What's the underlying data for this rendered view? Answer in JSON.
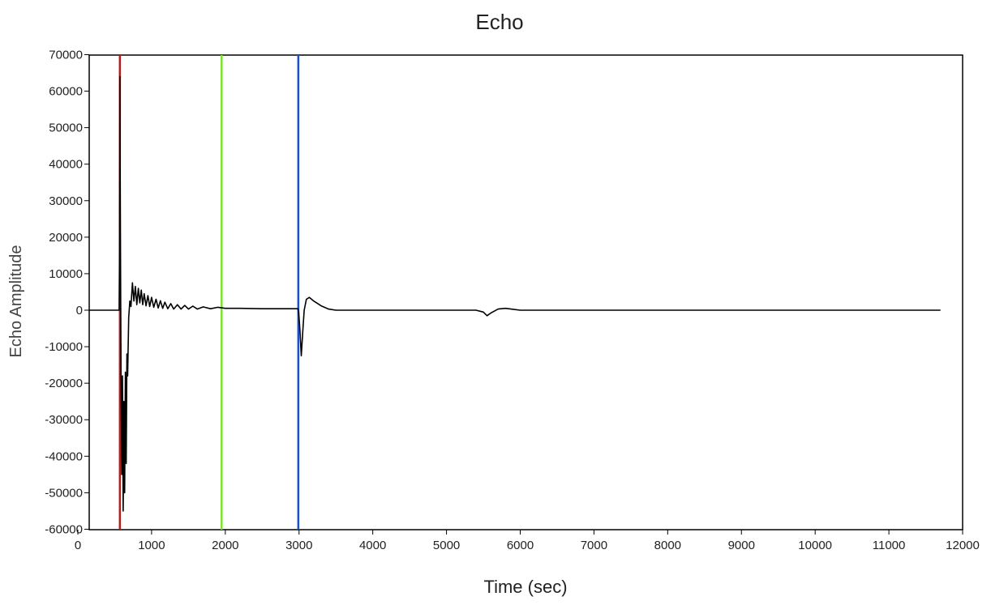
{
  "chart_data": {
    "type": "line",
    "title": "Echo",
    "xlabel": "Time (sec)",
    "ylabel": "Echo Amplitude",
    "xlim": [
      0,
      12000
    ],
    "ylim": [
      -60000,
      70000
    ],
    "xticks": [
      0,
      1000,
      2000,
      3000,
      4000,
      5000,
      6000,
      7000,
      8000,
      9000,
      10000,
      11000,
      12000
    ],
    "yticks": [
      70000,
      60000,
      50000,
      40000,
      30000,
      20000,
      10000,
      0,
      -10000,
      -20000,
      -30000,
      -40000,
      -50000,
      -60000
    ],
    "grid": false,
    "legend": "none",
    "series": [
      {
        "color": "#000000",
        "points": [
          [
            150,
            0
          ],
          [
            400,
            0
          ],
          [
            560,
            0
          ],
          [
            565,
            15000
          ],
          [
            570,
            64000
          ],
          [
            575,
            30000
          ],
          [
            585,
            -15000
          ],
          [
            595,
            -45000
          ],
          [
            605,
            -18000
          ],
          [
            615,
            -55000
          ],
          [
            625,
            -25000
          ],
          [
            635,
            -50000
          ],
          [
            645,
            -17000
          ],
          [
            655,
            -42000
          ],
          [
            665,
            -12000
          ],
          [
            675,
            -18000
          ],
          [
            690,
            -2000
          ],
          [
            705,
            2500
          ],
          [
            720,
            1000
          ],
          [
            740,
            7500
          ],
          [
            760,
            2500
          ],
          [
            780,
            6500
          ],
          [
            800,
            1500
          ],
          [
            820,
            6000
          ],
          [
            840,
            2000
          ],
          [
            860,
            5500
          ],
          [
            880,
            1500
          ],
          [
            900,
            4500
          ],
          [
            925,
            1200
          ],
          [
            950,
            4000
          ],
          [
            975,
            1000
          ],
          [
            1000,
            3500
          ],
          [
            1030,
            800
          ],
          [
            1060,
            3000
          ],
          [
            1090,
            600
          ],
          [
            1120,
            2600
          ],
          [
            1150,
            500
          ],
          [
            1180,
            2200
          ],
          [
            1220,
            400
          ],
          [
            1260,
            1800
          ],
          [
            1300,
            300
          ],
          [
            1350,
            1500
          ],
          [
            1400,
            300
          ],
          [
            1450,
            1300
          ],
          [
            1500,
            300
          ],
          [
            1560,
            1100
          ],
          [
            1620,
            300
          ],
          [
            1700,
            900
          ],
          [
            1800,
            400
          ],
          [
            1900,
            800
          ],
          [
            2000,
            500
          ],
          [
            2200,
            500
          ],
          [
            2500,
            400
          ],
          [
            2800,
            400
          ],
          [
            2985,
            400
          ],
          [
            2995,
            -500
          ],
          [
            3010,
            -5000
          ],
          [
            3030,
            -12500
          ],
          [
            3050,
            -6000
          ],
          [
            3070,
            0
          ],
          [
            3100,
            3000
          ],
          [
            3140,
            3500
          ],
          [
            3200,
            2500
          ],
          [
            3300,
            1200
          ],
          [
            3400,
            300
          ],
          [
            3500,
            0
          ],
          [
            3800,
            0
          ],
          [
            4500,
            0
          ],
          [
            5000,
            0
          ],
          [
            5400,
            0
          ],
          [
            5500,
            -500
          ],
          [
            5550,
            -1500
          ],
          [
            5600,
            -800
          ],
          [
            5700,
            300
          ],
          [
            5800,
            500
          ],
          [
            6000,
            0
          ],
          [
            7000,
            0
          ],
          [
            8000,
            0
          ],
          [
            9000,
            0
          ],
          [
            10000,
            0
          ],
          [
            11000,
            0
          ],
          [
            11700,
            0
          ]
        ]
      }
    ],
    "markers": [
      {
        "x": 570,
        "color": "#b71c1c"
      },
      {
        "x": 1950,
        "color": "#7ee22b"
      },
      {
        "x": 2990,
        "color": "#1a4fd4"
      }
    ]
  }
}
